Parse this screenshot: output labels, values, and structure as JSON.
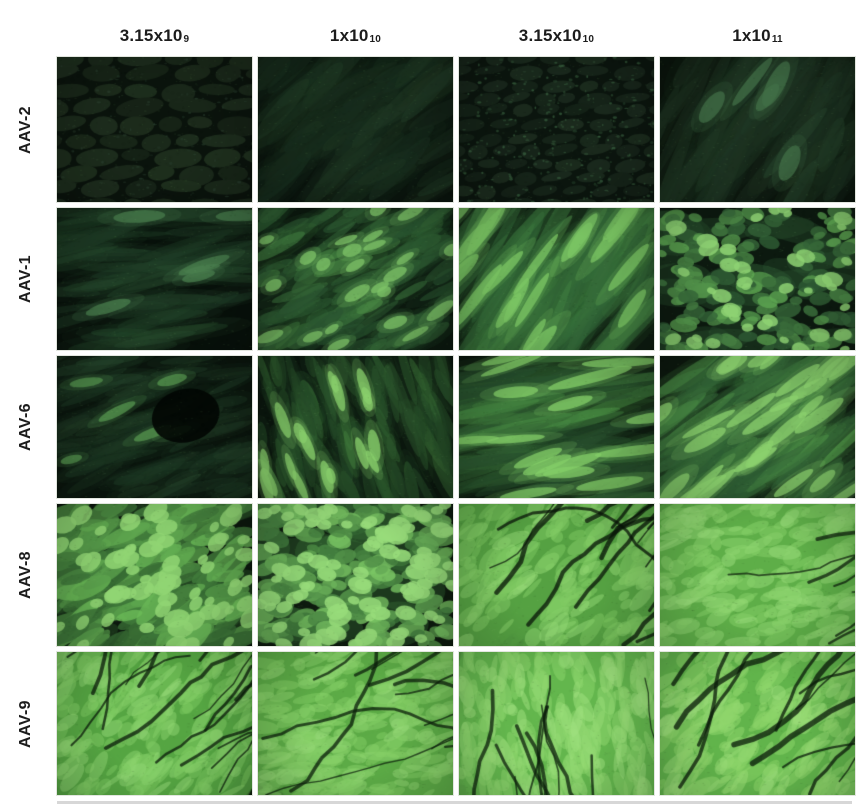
{
  "figure": {
    "title": "AAV serotype dose-response fluorescence micrograph panel",
    "colors": {
      "background": "#ffffff",
      "label_text": "#1c1c1c",
      "bottom_rule": "#d7d7d7"
    },
    "column_headers": [
      {
        "base": "3.15x10",
        "exp": "9"
      },
      {
        "base": "1x10",
        "exp": "10"
      },
      {
        "base": "3.15x10",
        "exp": "10"
      },
      {
        "base": "1x10",
        "exp": "11"
      }
    ],
    "rows": [
      {
        "label": "AAV-2",
        "cells": [
          {
            "serotype": "AAV-2",
            "dose": "3.15x10^9",
            "intensity": "very dim",
            "render": {
              "pattern": "bricks",
              "seed": 11,
              "base": "#0a130c",
              "brick": "#20301f",
              "speck": "#2a4030",
              "angle": -4,
              "bw": 36,
              "bh": 16,
              "speckly": false
            }
          },
          {
            "serotype": "AAV-2",
            "dose": "1x10^10",
            "intensity": "very dim",
            "render": {
              "pattern": "streaks",
              "seed": 21,
              "base": "#0a140d",
              "mid": "#16291a",
              "hi": "#24422a",
              "top": "#315738",
              "n": 75,
              "angle": -38,
              "len": [
                40,
                115
              ],
              "wdt": [
                8,
                18
              ],
              "alpha": 0.5,
              "bright": 0
            }
          },
          {
            "serotype": "AAV-2",
            "dose": "3.15x10^10",
            "intensity": "dim",
            "render": {
              "pattern": "bricks",
              "seed": 31,
              "base": "#0b150e",
              "brick": "#1c2c1f",
              "speck": "#3e6a45",
              "angle": -6,
              "bw": 26,
              "bh": 12,
              "speckly": true
            }
          },
          {
            "serotype": "AAV-2",
            "dose": "1x10^11",
            "intensity": "dim",
            "render": {
              "pattern": "streaks",
              "seed": 41,
              "base": "#0a140c",
              "mid": "#182b1c",
              "hi": "#2b4c31",
              "top": "#416f47",
              "n": 65,
              "angle": -58,
              "len": [
                50,
                125
              ],
              "wdt": [
                10,
                20
              ],
              "alpha": 0.5,
              "bright": 5
            }
          }
        ]
      },
      {
        "label": "AAV-1",
        "cells": [
          {
            "serotype": "AAV-1",
            "dose": "3.15x10^9",
            "intensity": "low",
            "render": {
              "pattern": "streaks",
              "seed": 51,
              "base": "#07100a",
              "mid": "#1c3823",
              "hi": "#2f5a36",
              "top": "#4a7f4e",
              "n": 60,
              "angle": -10,
              "len": [
                50,
                135
              ],
              "wdt": [
                6,
                14
              ],
              "alpha": 0.45,
              "bright": 6
            }
          },
          {
            "serotype": "AAV-1",
            "dose": "1x10^10",
            "intensity": "medium",
            "render": {
              "pattern": "streaks",
              "seed": 61,
              "base": "#0b180e",
              "mid": "#27502e",
              "hi": "#4f9448",
              "top": "#7fc468",
              "n": 115,
              "angle": -28,
              "len": [
                20,
                62
              ],
              "wdt": [
                7,
                14
              ],
              "alpha": 0.6,
              "bright": 24
            }
          },
          {
            "serotype": "AAV-1",
            "dose": "3.15x10^10",
            "intensity": "medium-high",
            "render": {
              "pattern": "streaks",
              "seed": 71,
              "base": "#0d1b10",
              "mid": "#2c5c33",
              "hi": "#55a04d",
              "top": "#7cc764",
              "n": 95,
              "angle": -55,
              "len": [
                60,
                155
              ],
              "wdt": [
                8,
                16
              ],
              "alpha": 0.55,
              "bright": 20
            }
          },
          {
            "serotype": "AAV-1",
            "dose": "1x10^11",
            "intensity": "medium-high",
            "render": {
              "pattern": "cells",
              "seed": 81,
              "base": "#0c190f",
              "mid": "#2a5431",
              "hi": "#63ae55",
              "top": "#8ed273",
              "n": 150,
              "r": [
                4,
                10
              ],
              "bright": 42
            }
          }
        ]
      },
      {
        "label": "AAV-6",
        "cells": [
          {
            "serotype": "AAV-6",
            "dose": "3.15x10^9",
            "intensity": "low",
            "render": {
              "pattern": "streaks",
              "seed": 91,
              "base": "#0a150d",
              "mid": "#1b3421",
              "hi": "#2e5434",
              "top": "#55954f",
              "n": 75,
              "angle": -18,
              "len": [
                30,
                85
              ],
              "wdt": [
                6,
                12
              ],
              "alpha": 0.4,
              "bright": 6,
              "blob": [
                0.66,
                0.42,
                0.16
              ]
            }
          },
          {
            "serotype": "AAV-6",
            "dose": "1x10^10",
            "intensity": "medium",
            "render": {
              "pattern": "streaks",
              "seed": 101,
              "base": "#0a160d",
              "mid": "#234726",
              "hi": "#4d9245",
              "top": "#8ad06c",
              "n": 105,
              "angle": 72,
              "len": [
                25,
                72
              ],
              "wdt": [
                7,
                13
              ],
              "alpha": 0.55,
              "bright": 18,
              "zone": [
                0,
                0.6
              ]
            }
          },
          {
            "serotype": "AAV-6",
            "dose": "3.15x10^10",
            "intensity": "medium-high",
            "render": {
              "pattern": "streaks",
              "seed": 111,
              "base": "#0a150c",
              "mid": "#24482a",
              "hi": "#53a04b",
              "top": "#84cf68",
              "n": 80,
              "angle": -12,
              "len": [
                70,
                165
              ],
              "wdt": [
                7,
                13
              ],
              "alpha": 0.55,
              "bright": 16
            }
          },
          {
            "serotype": "AAV-6",
            "dose": "1x10^11",
            "intensity": "medium-high",
            "render": {
              "pattern": "streaks",
              "seed": 121,
              "base": "#0c180e",
              "mid": "#2c5832",
              "hi": "#5cab50",
              "top": "#8bd06e",
              "n": 115,
              "angle": -35,
              "len": [
                40,
                112
              ],
              "wdt": [
                8,
                15
              ],
              "alpha": 0.6,
              "bright": 28
            }
          }
        ]
      },
      {
        "label": "AAV-8",
        "cells": [
          {
            "serotype": "AAV-8",
            "dose": "3.15x10^9",
            "intensity": "high",
            "render": {
              "pattern": "cells",
              "seed": 131,
              "base": "#0b170d",
              "mid": "#336631",
              "hi": "#6cbb58",
              "top": "#90d573",
              "n": 190,
              "r": [
                5,
                12
              ],
              "bright": 70,
              "elong": true,
              "angle": -28
            }
          },
          {
            "serotype": "AAV-8",
            "dose": "1x10^10",
            "intensity": "high",
            "render": {
              "pattern": "cells",
              "seed": 141,
              "base": "#0d1a0e",
              "mid": "#3a7238",
              "hi": "#7cc765",
              "top": "#98dc7a",
              "n": 210,
              "r": [
                5,
                11
              ],
              "bright": 90
            }
          },
          {
            "serotype": "AAV-8",
            "dose": "3.15x10^10",
            "intensity": "very high",
            "render": {
              "pattern": "dense",
              "seed": 151,
              "base": "#0c180d",
              "fill": "#55a343",
              "hi": "#7cc85f",
              "top": "#98dc78",
              "n": 165,
              "angle": -42,
              "cracks": 15,
              "crack": "#081408",
              "bold": true
            }
          },
          {
            "serotype": "AAV-8",
            "dose": "1x10^11",
            "intensity": "very high",
            "render": {
              "pattern": "dense",
              "seed": 161,
              "base": "#11230f",
              "fill": "#5fae49",
              "hi": "#85cf67",
              "top": "#9cde7d",
              "n": 185,
              "angle": -18,
              "cracks": 7,
              "crack": "#0d1f0c",
              "bold": false
            }
          }
        ]
      },
      {
        "label": "AAV-9",
        "cells": [
          {
            "serotype": "AAV-9",
            "dose": "3.15x10^9",
            "intensity": "very high",
            "render": {
              "pattern": "dense",
              "seed": 171,
              "base": "#0e1f0e",
              "fill": "#55a544",
              "hi": "#7cc95f",
              "top": "#96da78",
              "n": 225,
              "angle": -48,
              "cracks": 16,
              "crack": "#0a1a0a",
              "bold": false
            }
          },
          {
            "serotype": "AAV-9",
            "dose": "1x10^10",
            "intensity": "very high",
            "render": {
              "pattern": "dense",
              "seed": 181,
              "base": "#102310",
              "fill": "#5cab47",
              "hi": "#82cd63",
              "top": "#9adc7b",
              "n": 225,
              "angle": -12,
              "cracks": 13,
              "crack": "#0b1d0b",
              "bold": false
            }
          },
          {
            "serotype": "AAV-9",
            "dose": "3.15x10^10",
            "intensity": "brightest",
            "render": {
              "pattern": "dense",
              "seed": 191,
              "base": "#122611",
              "fill": "#65b64e",
              "hi": "#8ad46a",
              "top": "#a2e281",
              "n": 245,
              "angle": 82,
              "cracks": 11,
              "crack": "#0c1f0c",
              "bold": false
            }
          },
          {
            "serotype": "AAV-9",
            "dose": "1x10^11",
            "intensity": "brightest",
            "render": {
              "pattern": "dense",
              "seed": 201,
              "base": "#112410",
              "fill": "#63b44c",
              "hi": "#8bd468",
              "top": "#a0e07e",
              "n": 205,
              "angle": -44,
              "cracks": 12,
              "crack": "#091a09",
              "bold": true
            }
          }
        ]
      }
    ]
  }
}
